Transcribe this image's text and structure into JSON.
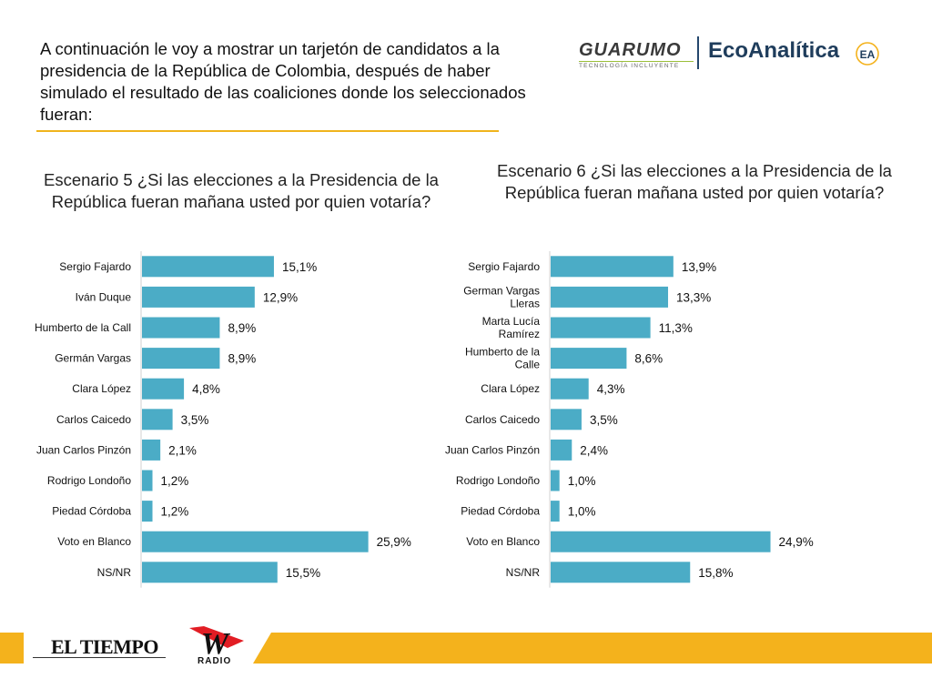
{
  "intro": {
    "text": "A continuación le voy a mostrar un tarjetón de candidatos a la presidencia de la República de Colombia, después de haber simulado el resultado de las coaliciones donde los seleccionados fueran:"
  },
  "logos": {
    "guarumo": "GUARUMO",
    "guarumo_tagline": "TECNOLOGÍA INCLUYENTE",
    "ecoanalitica": "EcoAnalítica",
    "ecoanalitica_mark": "EA",
    "eltiempo": "EL TIEMPO",
    "wradio_mark": "W",
    "wradio": "RADIO"
  },
  "colors": {
    "bar": "#4bacc6",
    "accent": "#f4b21c",
    "brand_navy": "#1f3d5c"
  },
  "chart_data": [
    {
      "type": "bar",
      "orientation": "horizontal",
      "title": "Escenario 5 ¿Si las elecciones a la Presidencia de la República fueran mañana usted por quien votaría?",
      "categories": [
        "Sergio Fajardo",
        "Iván Duque",
        "Humberto de la Call",
        "Germán Vargas",
        "Clara López",
        "Carlos Caicedo",
        "Juan Carlos Pinzón",
        "Rodrigo Londoño",
        "Piedad Córdoba",
        "Voto en Blanco",
        "NS/NR"
      ],
      "values": [
        15.1,
        12.9,
        8.9,
        8.9,
        4.8,
        3.5,
        2.1,
        1.2,
        1.2,
        25.9,
        15.5
      ],
      "labels": [
        "15,1%",
        "12,9%",
        "8,9%",
        "8,9%",
        "4,8%",
        "3,5%",
        "2,1%",
        "1,2%",
        "1,2%",
        "25,9%",
        "15,5%"
      ],
      "xlim": [
        0,
        30
      ],
      "grid": false
    },
    {
      "type": "bar",
      "orientation": "horizontal",
      "title": "Escenario 6 ¿Si las elecciones a la Presidencia de la República fueran mañana usted por quien votaría?",
      "categories": [
        "Sergio Fajardo",
        "German Vargas Lleras",
        "Marta Lucía Ramírez",
        "Humberto de la Calle",
        "Clara López",
        "Carlos Caicedo",
        "Juan Carlos Pinzón",
        "Rodrigo Londoño",
        "Piedad Córdoba",
        "Voto en Blanco",
        "NS/NR"
      ],
      "values": [
        13.9,
        13.3,
        11.3,
        8.6,
        4.3,
        3.5,
        2.4,
        1.0,
        1.0,
        24.9,
        15.8
      ],
      "labels": [
        "13,9%",
        "13,3%",
        "11,3%",
        "8,6%",
        "4,3%",
        "3,5%",
        "2,4%",
        "1,0%",
        "1,0%",
        "24,9%",
        "15,8%"
      ],
      "xlim": [
        0,
        30
      ],
      "grid": false
    }
  ]
}
